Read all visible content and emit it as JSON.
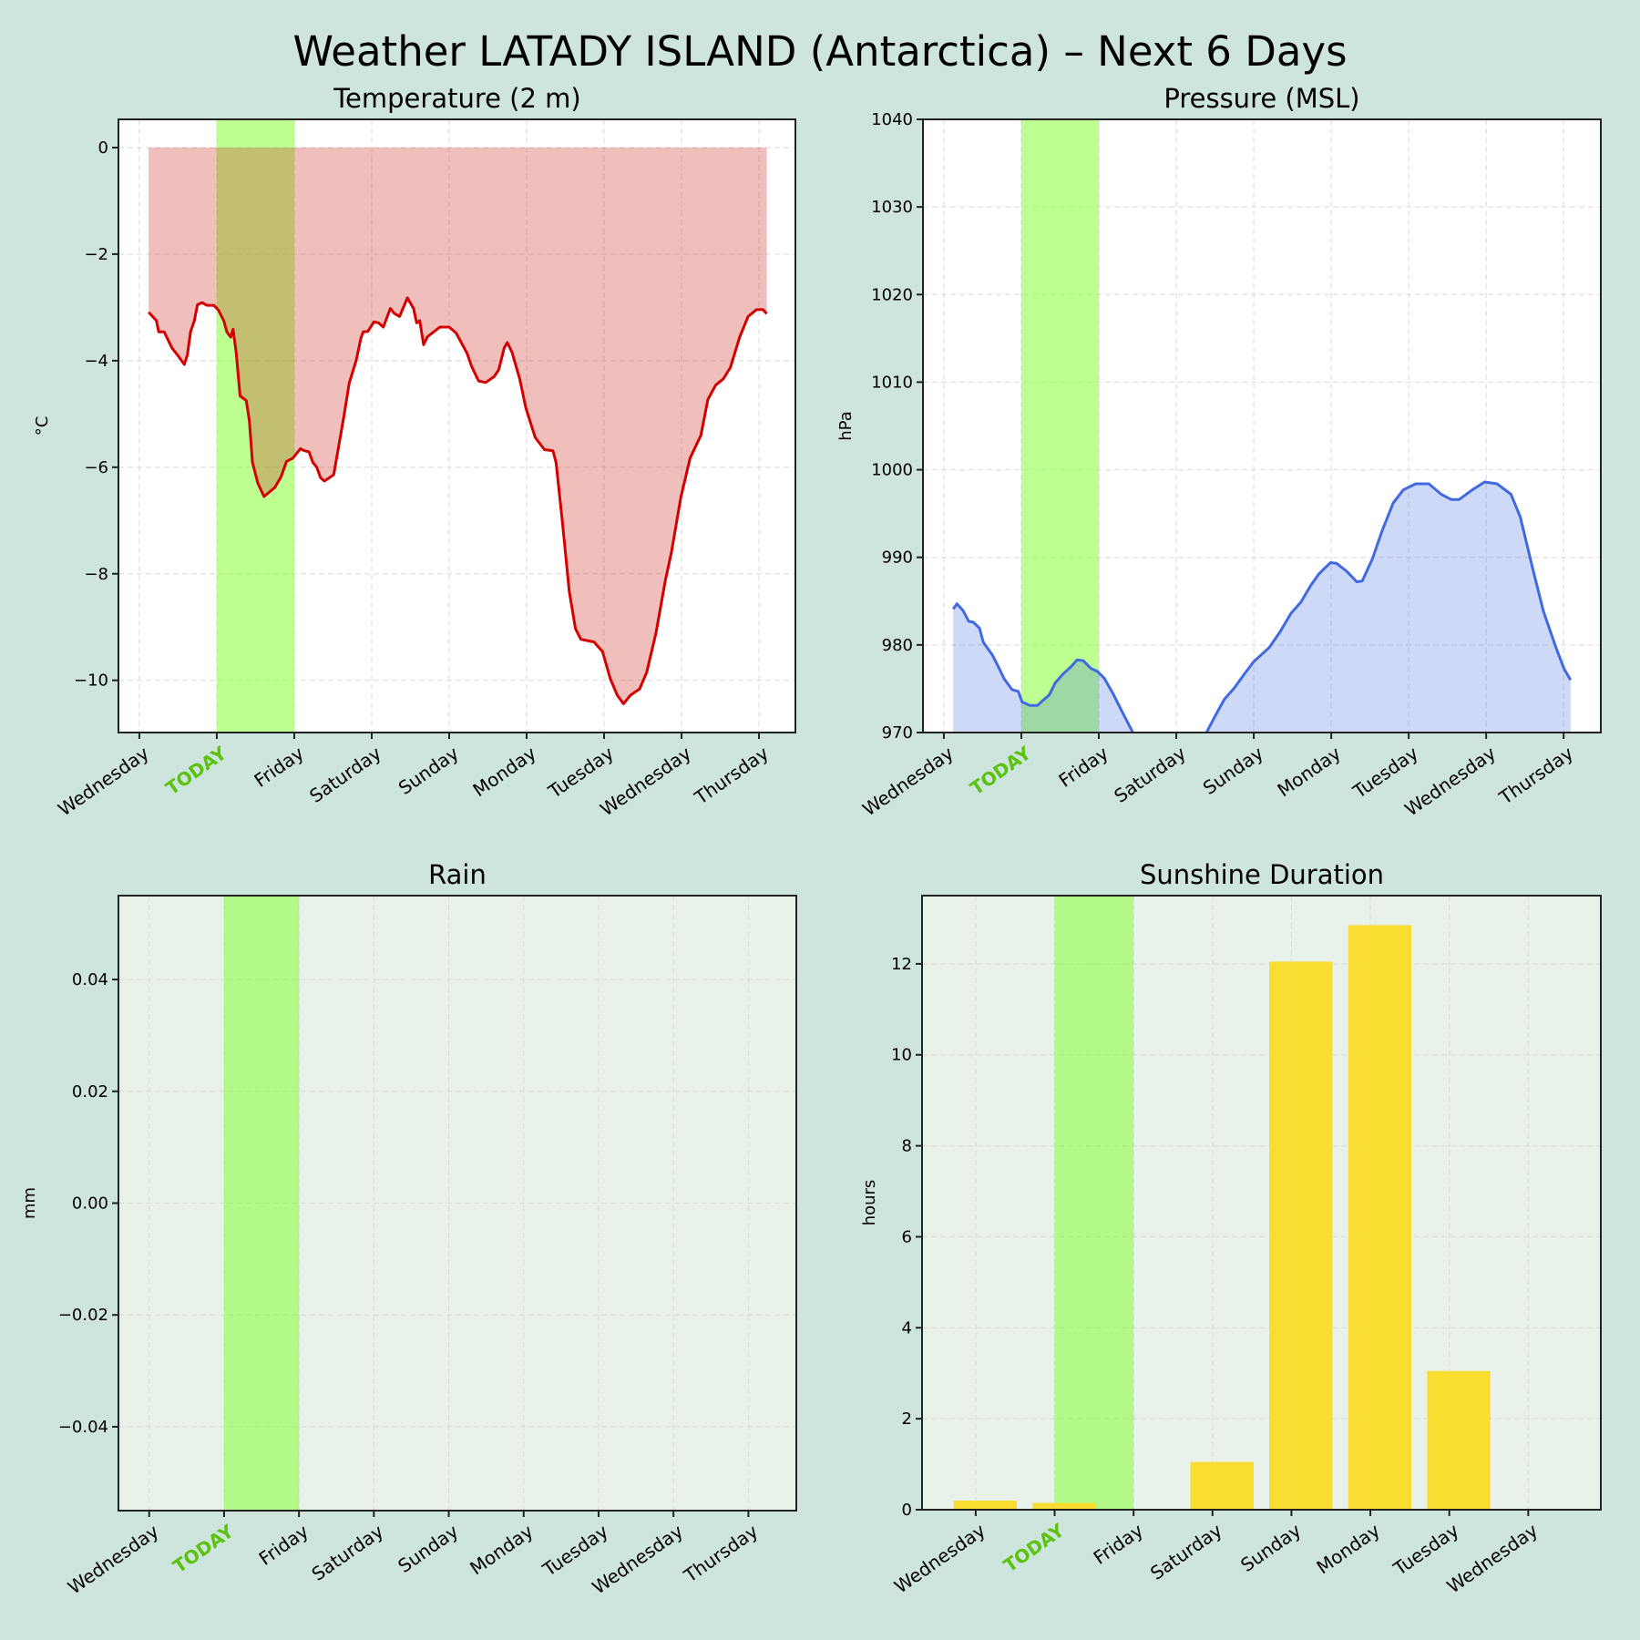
{
  "title": "Weather LATADY ISLAND (Antarctica) – Next 6 Days",
  "colors": {
    "background": "#cde5dd",
    "today_band": "#7cff24",
    "today_label": "#5bc20f",
    "temperature_line": "#d40000",
    "temperature_fill": "#d02d25",
    "pressure_line": "#4169e1",
    "sunshine_bar": "#f9dd30",
    "lower_panel_bg": "#e8f2ea"
  },
  "chart_data": [
    {
      "id": "temperature",
      "type": "area",
      "title": "Temperature (2 m)",
      "ylabel": "°C",
      "xlabel": "",
      "x_unit": "days since first Wednesday 00:00",
      "xticks": [
        0,
        1,
        2,
        3,
        4,
        5,
        6,
        7,
        8
      ],
      "xtick_labels": [
        "Wednesday",
        "TODAY",
        "Friday",
        "Saturday",
        "Sunday",
        "Monday",
        "Tuesday",
        "Wednesday",
        "Thursday"
      ],
      "today_index": 1,
      "highlight": [
        1,
        2
      ],
      "xlim": [
        -0.27,
        8.47
      ],
      "ylim": [
        -10.98,
        0.53
      ],
      "yticks": [
        0,
        -2,
        -4,
        -6,
        -8,
        -10
      ],
      "ytick_labels": [
        "0",
        "−2",
        "−4",
        "−6",
        "−8",
        "−10"
      ],
      "fill_to": 0,
      "grid": true,
      "x": [
        0.12,
        0.22,
        0.25,
        0.32,
        0.42,
        0.49,
        0.58,
        0.62,
        0.66,
        0.71,
        0.75,
        0.81,
        0.87,
        0.96,
        1.02,
        1.09,
        1.13,
        1.18,
        1.21,
        1.25,
        1.3,
        1.38,
        1.42,
        1.46,
        1.53,
        1.61,
        1.75,
        1.83,
        1.9,
        1.98,
        2.08,
        2.13,
        2.19,
        2.24,
        2.29,
        2.34,
        2.39,
        2.51,
        2.58,
        2.64,
        2.71,
        2.8,
        2.86,
        2.89,
        2.95,
        3.03,
        3.09,
        3.15,
        3.24,
        3.29,
        3.36,
        3.46,
        3.54,
        3.58,
        3.62,
        3.67,
        3.72,
        3.88,
        4.0,
        4.09,
        4.23,
        4.29,
        4.38,
        4.47,
        4.58,
        4.64,
        4.71,
        4.75,
        4.81,
        4.91,
        4.99,
        5.11,
        5.23,
        5.34,
        5.38,
        5.46,
        5.55,
        5.63,
        5.7,
        5.87,
        5.98,
        6.08,
        6.17,
        6.25,
        6.34,
        6.46,
        6.55,
        6.67,
        6.79,
        6.87,
        6.99,
        7.11,
        7.25,
        7.34,
        7.44,
        7.54,
        7.63,
        7.75,
        7.86,
        7.97,
        8.05,
        8.1
      ],
      "y": [
        -3.09,
        -3.25,
        -3.46,
        -3.46,
        -3.76,
        -3.89,
        -4.07,
        -3.89,
        -3.46,
        -3.25,
        -2.95,
        -2.91,
        -2.96,
        -2.96,
        -3.05,
        -3.25,
        -3.46,
        -3.56,
        -3.41,
        -3.84,
        -4.66,
        -4.75,
        -5.13,
        -5.91,
        -6.3,
        -6.55,
        -6.38,
        -6.18,
        -5.89,
        -5.83,
        -5.65,
        -5.69,
        -5.71,
        -5.91,
        -6.0,
        -6.2,
        -6.26,
        -6.14,
        -5.55,
        -5.05,
        -4.42,
        -3.99,
        -3.58,
        -3.46,
        -3.45,
        -3.27,
        -3.29,
        -3.37,
        -3.02,
        -3.11,
        -3.17,
        -2.82,
        -3.02,
        -3.29,
        -3.25,
        -3.7,
        -3.55,
        -3.37,
        -3.37,
        -3.48,
        -3.86,
        -4.11,
        -4.38,
        -4.41,
        -4.3,
        -4.17,
        -3.76,
        -3.66,
        -3.84,
        -4.34,
        -4.89,
        -5.44,
        -5.67,
        -5.69,
        -5.91,
        -7.0,
        -8.33,
        -9.03,
        -9.23,
        -9.28,
        -9.46,
        -9.97,
        -10.28,
        -10.44,
        -10.28,
        -10.16,
        -9.85,
        -9.11,
        -8.13,
        -7.59,
        -6.57,
        -5.83,
        -5.4,
        -4.73,
        -4.46,
        -4.34,
        -4.13,
        -3.56,
        -3.17,
        -3.04,
        -3.04,
        -3.12
      ]
    },
    {
      "id": "pressure",
      "type": "area",
      "title": "Pressure (MSL)",
      "ylabel": "hPa",
      "xlabel": "",
      "xticks": [
        0,
        1,
        2,
        3,
        4,
        5,
        6,
        7,
        8
      ],
      "xtick_labels": [
        "Wednesday",
        "TODAY",
        "Friday",
        "Saturday",
        "Sunday",
        "Monday",
        "Tuesday",
        "Wednesday",
        "Thursday"
      ],
      "today_index": 1,
      "highlight": [
        1,
        2
      ],
      "xlim": [
        -0.27,
        8.48
      ],
      "ylim": [
        970,
        1040
      ],
      "yticks": [
        970,
        980,
        990,
        1000,
        1010,
        1020,
        1030,
        1040
      ],
      "ytick_labels": [
        "970",
        "980",
        "990",
        "1000",
        "1010",
        "1020",
        "1030",
        "1040"
      ],
      "grid": true,
      "note_gap": "values between Friday evening and Saturday evening fall below the 970 hPa axis limit (not visible)",
      "x": [
        0.12,
        0.17,
        0.25,
        0.32,
        0.38,
        0.46,
        0.51,
        0.63,
        0.71,
        0.78,
        0.88,
        0.96,
        1.01,
        1.11,
        1.21,
        1.27,
        1.36,
        1.44,
        1.54,
        1.64,
        1.72,
        1.8,
        1.9,
        1.98,
        2.07,
        2.18,
        2.3,
        2.44,
        null,
        3.39,
        3.49,
        3.62,
        3.75,
        3.88,
        4.0,
        4.2,
        4.34,
        4.48,
        4.61,
        4.73,
        4.84,
        4.99,
        5.07,
        5.2,
        5.33,
        5.4,
        5.53,
        5.66,
        5.8,
        5.93,
        6.09,
        6.26,
        6.42,
        6.55,
        6.65,
        6.82,
        6.98,
        7.14,
        7.32,
        7.44,
        7.61,
        7.74,
        7.91,
        8.01,
        8.09
      ],
      "y": [
        984.1,
        984.7,
        983.9,
        982.7,
        982.6,
        981.9,
        980.3,
        978.8,
        977.4,
        976.1,
        974.9,
        974.7,
        973.5,
        973.1,
        973.1,
        973.6,
        974.3,
        975.7,
        976.7,
        977.5,
        978.3,
        978.2,
        977.3,
        977.0,
        976.2,
        974.5,
        972.4,
        970.0,
        null,
        970.0,
        971.7,
        973.8,
        975.1,
        976.7,
        978.1,
        979.7,
        981.5,
        983.6,
        984.9,
        986.7,
        988.1,
        989.4,
        989.3,
        988.4,
        987.2,
        987.3,
        989.8,
        993.1,
        996.2,
        997.7,
        998.4,
        998.4,
        997.2,
        996.6,
        996.6,
        997.7,
        998.6,
        998.4,
        997.2,
        994.6,
        988.4,
        983.8,
        979.5,
        977.2,
        976.0
      ]
    },
    {
      "id": "rain",
      "type": "bar",
      "title": "Rain",
      "ylabel": "mm",
      "xlabel": "",
      "xticks": [
        0,
        1,
        2,
        3,
        4,
        5,
        6,
        7,
        8
      ],
      "xtick_labels": [
        "Wednesday",
        "TODAY",
        "Friday",
        "Saturday",
        "Sunday",
        "Monday",
        "Tuesday",
        "Wednesday",
        "Thursday"
      ],
      "today_index": 1,
      "highlight": [
        1,
        2
      ],
      "xlim": [
        -0.41,
        8.64
      ],
      "ylim": [
        -0.055,
        0.055
      ],
      "yticks": [
        0.04,
        0.02,
        0.0,
        -0.02,
        -0.04
      ],
      "ytick_labels": [
        "0.04",
        "0.02",
        "0.00",
        "−0.02",
        "−0.04"
      ],
      "grid": true,
      "values": []
    },
    {
      "id": "sunshine",
      "type": "bar",
      "title": "Sunshine Duration",
      "ylabel": "hours",
      "xlabel": "",
      "xticks": [
        0,
        1,
        2,
        3,
        4,
        5,
        6,
        7
      ],
      "xtick_labels": [
        "Wednesday",
        "TODAY",
        "Friday",
        "Saturday",
        "Sunday",
        "Monday",
        "Tuesday",
        "Wednesday"
      ],
      "today_index": 1,
      "highlight": [
        1,
        2
      ],
      "xlim": [
        -0.68,
        7.92
      ],
      "ylim": [
        0,
        13.5
      ],
      "yticks": [
        0,
        2,
        4,
        6,
        8,
        10,
        12
      ],
      "ytick_labels": [
        "0",
        "2",
        "4",
        "6",
        "8",
        "10",
        "12"
      ],
      "grid": true,
      "bar_offset": 0.12,
      "bar_width": 0.8,
      "categories": [
        "Wednesday",
        "TODAY",
        "Friday",
        "Saturday",
        "Sunday",
        "Monday",
        "Tuesday",
        "Wednesday"
      ],
      "values": [
        0.2,
        0.15,
        0,
        1.05,
        12.05,
        12.85,
        3.05,
        0
      ]
    }
  ]
}
